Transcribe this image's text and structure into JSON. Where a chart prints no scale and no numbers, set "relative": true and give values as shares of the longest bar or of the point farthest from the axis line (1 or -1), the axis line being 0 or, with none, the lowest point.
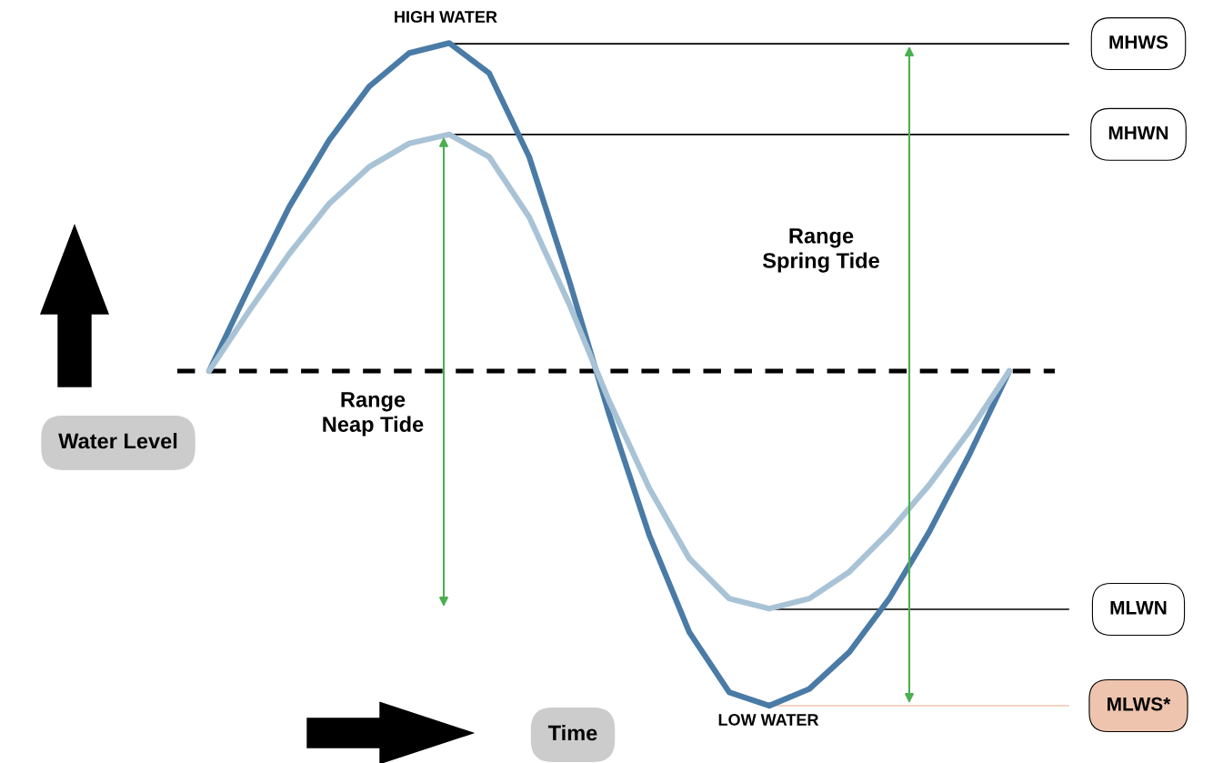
{
  "chart_data": {
    "type": "line",
    "relative": true,
    "xlabel": "Time",
    "ylabel": "Water Level",
    "categories": [
      null,
      null,
      null,
      null,
      null,
      null,
      null,
      null,
      null,
      null,
      null,
      null,
      null,
      null,
      null,
      null,
      null,
      null,
      null,
      null,
      null
    ],
    "series": [
      {
        "color": "#4a7ba6",
        "values": [
          0,
          0.25,
          0.49,
          0.69,
          0.85,
          0.95,
          0.98,
          0.89,
          0.64,
          0.27,
          -0.13,
          -0.49,
          -0.78,
          -0.96,
          -1,
          -0.95,
          -0.84,
          -0.68,
          -0.48,
          -0.25,
          0
        ]
      },
      {
        "color": "#a9c3d6",
        "values": [
          0,
          0.18,
          0.35,
          0.5,
          0.61,
          0.68,
          0.707,
          0.64,
          0.46,
          0.2,
          -0.09,
          -0.35,
          -0.56,
          -0.68,
          -0.71,
          -0.68,
          -0.6,
          -0.48,
          -0.34,
          -0.18,
          0
        ]
      }
    ],
    "ref_lines": [
      {
        "axis": "y",
        "value": 0.978,
        "label": "MHWS",
        "color": "#000000"
      },
      {
        "axis": "y",
        "value": 0.707,
        "label": "MHWN",
        "color": "#000000"
      },
      {
        "axis": "y",
        "value": -0.712,
        "label": "MLWN",
        "color": "#000000"
      },
      {
        "axis": "y",
        "value": -1,
        "label": "MLWS*",
        "color": "#efc4ae"
      },
      {
        "axis": "y",
        "value": 0,
        "label": null,
        "color": "#000000",
        "line_style": "dashed"
      }
    ],
    "annotations": [
      "HIGH WATER",
      "LOW WATER",
      "Range\nSpring Tide",
      "Range\nNeap Tide"
    ],
    "marker": "none",
    "line_style": "solid"
  }
}
